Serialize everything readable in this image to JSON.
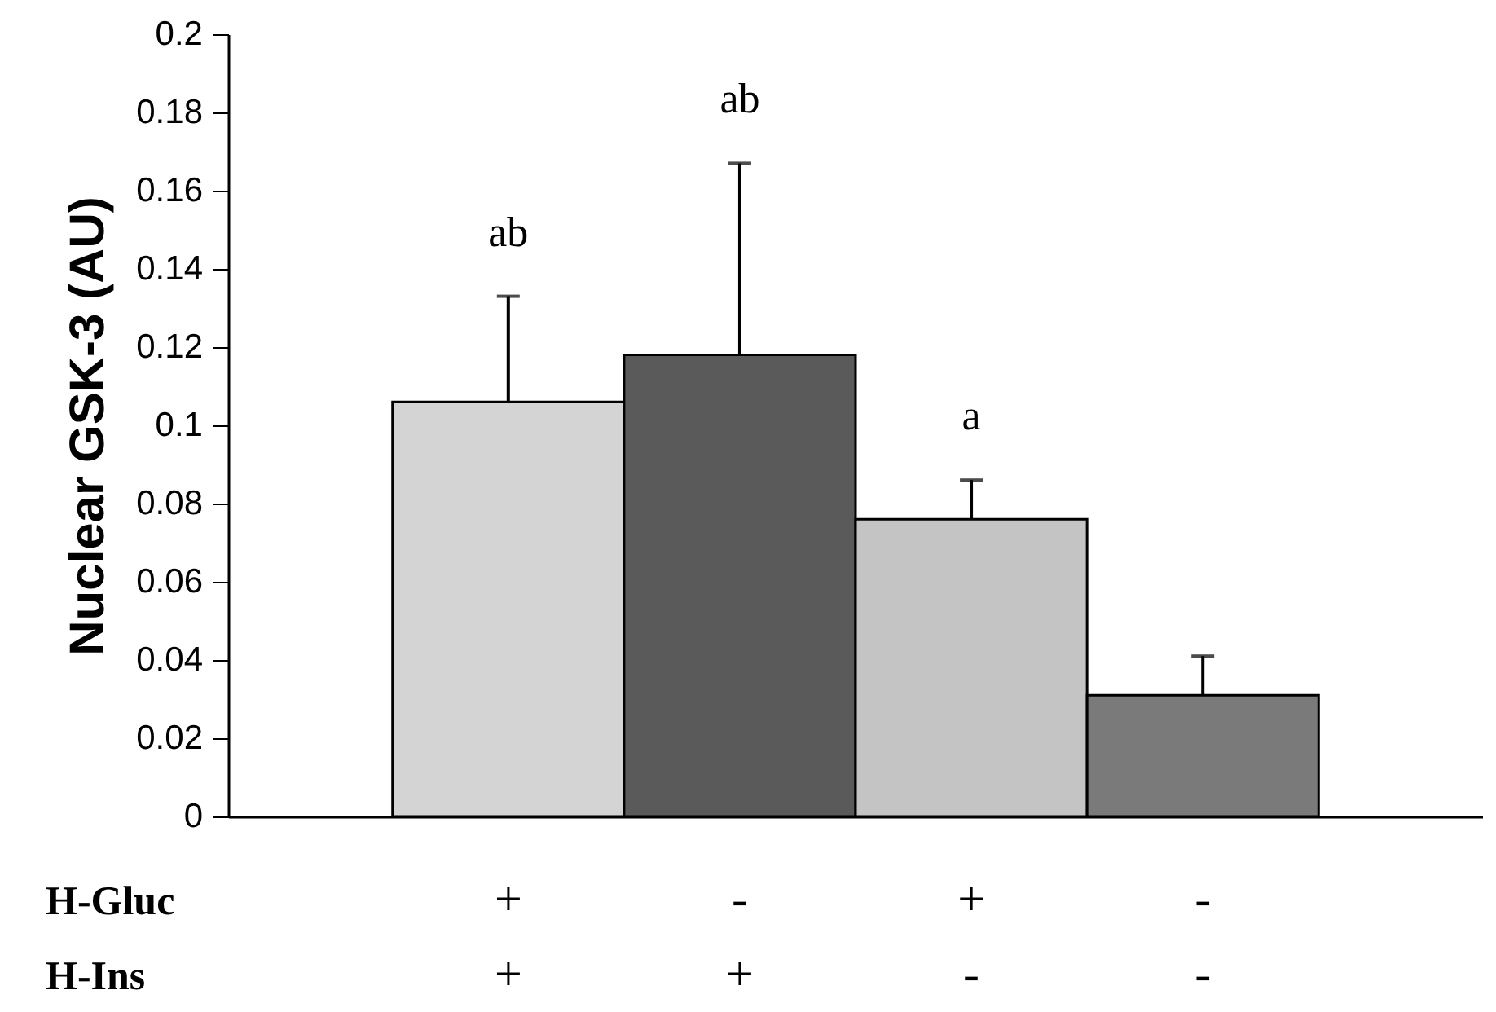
{
  "chart_data": {
    "type": "bar",
    "ylabel": "Nuclear GSK-3 (AU)",
    "categories": [
      "+\n+",
      "-\n+",
      "+\n-",
      "-\n-"
    ],
    "values": [
      0.106,
      0.118,
      0.076,
      0.031
    ],
    "colors": [
      "#d4d4d4",
      "#5a5a5a",
      "#c4c4c4",
      "#7a7a7a"
    ],
    "errors": [
      [
        0.106,
        0.133
      ],
      [
        0.118,
        0.167
      ],
      [
        0.076,
        0.086
      ],
      [
        0.031,
        0.041
      ]
    ],
    "ylim": [
      0,
      0.2
    ],
    "yticks": [
      0,
      0.02,
      0.04,
      0.06,
      0.08,
      0.1,
      0.12,
      0.14,
      0.16,
      0.18,
      0.2
    ],
    "annotations": [
      "ab",
      "ab",
      "a",
      "H-Gluc",
      "H-Ins"
    ]
  }
}
